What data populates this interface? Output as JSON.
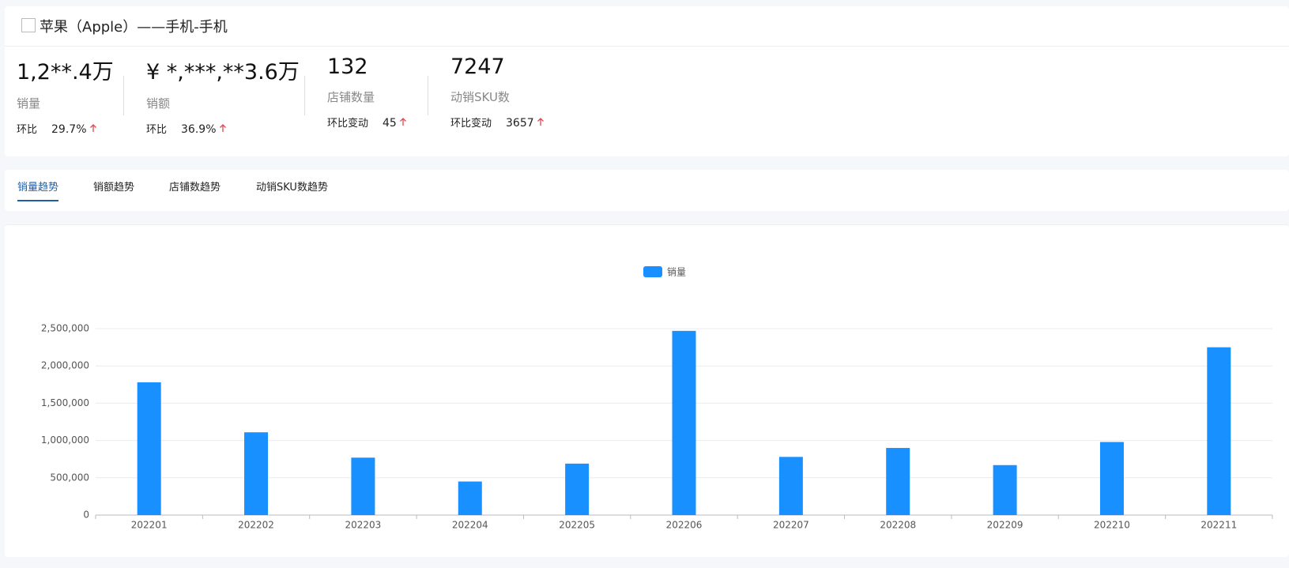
{
  "header": {
    "title": "苹果（Apple）——手机-手机"
  },
  "metrics": [
    {
      "value": "1,2**.4万",
      "label": "销量",
      "change_label": "环比",
      "change": "29.7%"
    },
    {
      "value": "¥ *,***,**3.6万",
      "label": "销额",
      "change_label": "环比",
      "change": "36.9%"
    },
    {
      "value": "132",
      "label": "店铺数量",
      "change_label": "环比变动",
      "change": "45"
    },
    {
      "value": "7247",
      "label": "动销SKU数",
      "change_label": "环比变动",
      "change": "3657"
    }
  ],
  "tabs": [
    "销量趋势",
    "销额趋势",
    "店铺数趋势",
    "动销SKU数趋势"
  ],
  "chart_data": {
    "type": "bar",
    "categories": [
      "202201",
      "202202",
      "202203",
      "202204",
      "202205",
      "202206",
      "202207",
      "202208",
      "202209",
      "202210",
      "202211"
    ],
    "series": [
      {
        "name": "销量",
        "color": "#1890ff",
        "values": [
          1780000,
          1110000,
          770000,
          450000,
          690000,
          2470000,
          780000,
          900000,
          670000,
          980000,
          2250000
        ]
      }
    ],
    "ylim": [
      0,
      2500000
    ],
    "yticks": [
      0,
      {
        "value": 500000,
        "label": "500,000"
      },
      {
        "value": 1000000,
        "label": "1,000,000"
      },
      {
        "value": 1500000,
        "label": "1,500,000"
      },
      {
        "value": 2000000,
        "label": "2,000,000"
      },
      {
        "value": 2500000,
        "label": "2,500,000"
      }
    ],
    "grid": true,
    "legend": "top"
  }
}
